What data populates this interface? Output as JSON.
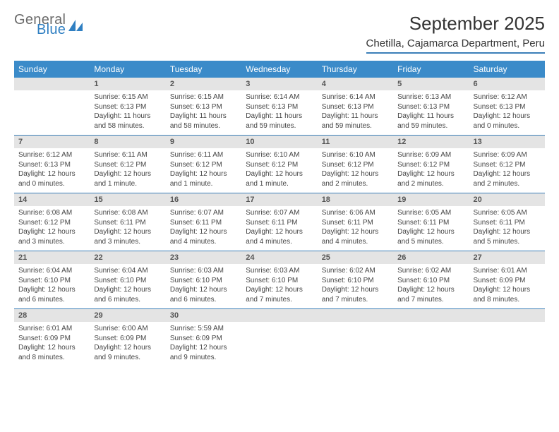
{
  "logo": {
    "general": "General",
    "blue": "Blue"
  },
  "title": "September 2025",
  "location": "Chetilla, Cajamarca Department, Peru",
  "colors": {
    "header_bg": "#3b8bc9",
    "header_text": "#ffffff",
    "rule": "#3b7fb8",
    "daynum_bg": "#e4e4e4",
    "logo_general": "#6b6b6b",
    "logo_blue": "#2f7fc2",
    "text": "#444444"
  },
  "typography": {
    "title_fontsize": 26,
    "location_fontsize": 15,
    "dayheader_fontsize": 12,
    "daynum_fontsize": 11,
    "body_fontsize": 10
  },
  "day_headers": [
    "Sunday",
    "Monday",
    "Tuesday",
    "Wednesday",
    "Thursday",
    "Friday",
    "Saturday"
  ],
  "weeks": [
    [
      {
        "n": "",
        "sr": "",
        "ss": "",
        "dl": ""
      },
      {
        "n": "1",
        "sr": "Sunrise: 6:15 AM",
        "ss": "Sunset: 6:13 PM",
        "dl": "Daylight: 11 hours and 58 minutes."
      },
      {
        "n": "2",
        "sr": "Sunrise: 6:15 AM",
        "ss": "Sunset: 6:13 PM",
        "dl": "Daylight: 11 hours and 58 minutes."
      },
      {
        "n": "3",
        "sr": "Sunrise: 6:14 AM",
        "ss": "Sunset: 6:13 PM",
        "dl": "Daylight: 11 hours and 59 minutes."
      },
      {
        "n": "4",
        "sr": "Sunrise: 6:14 AM",
        "ss": "Sunset: 6:13 PM",
        "dl": "Daylight: 11 hours and 59 minutes."
      },
      {
        "n": "5",
        "sr": "Sunrise: 6:13 AM",
        "ss": "Sunset: 6:13 PM",
        "dl": "Daylight: 11 hours and 59 minutes."
      },
      {
        "n": "6",
        "sr": "Sunrise: 6:12 AM",
        "ss": "Sunset: 6:13 PM",
        "dl": "Daylight: 12 hours and 0 minutes."
      }
    ],
    [
      {
        "n": "7",
        "sr": "Sunrise: 6:12 AM",
        "ss": "Sunset: 6:13 PM",
        "dl": "Daylight: 12 hours and 0 minutes."
      },
      {
        "n": "8",
        "sr": "Sunrise: 6:11 AM",
        "ss": "Sunset: 6:12 PM",
        "dl": "Daylight: 12 hours and 1 minute."
      },
      {
        "n": "9",
        "sr": "Sunrise: 6:11 AM",
        "ss": "Sunset: 6:12 PM",
        "dl": "Daylight: 12 hours and 1 minute."
      },
      {
        "n": "10",
        "sr": "Sunrise: 6:10 AM",
        "ss": "Sunset: 6:12 PM",
        "dl": "Daylight: 12 hours and 1 minute."
      },
      {
        "n": "11",
        "sr": "Sunrise: 6:10 AM",
        "ss": "Sunset: 6:12 PM",
        "dl": "Daylight: 12 hours and 2 minutes."
      },
      {
        "n": "12",
        "sr": "Sunrise: 6:09 AM",
        "ss": "Sunset: 6:12 PM",
        "dl": "Daylight: 12 hours and 2 minutes."
      },
      {
        "n": "13",
        "sr": "Sunrise: 6:09 AM",
        "ss": "Sunset: 6:12 PM",
        "dl": "Daylight: 12 hours and 2 minutes."
      }
    ],
    [
      {
        "n": "14",
        "sr": "Sunrise: 6:08 AM",
        "ss": "Sunset: 6:12 PM",
        "dl": "Daylight: 12 hours and 3 minutes."
      },
      {
        "n": "15",
        "sr": "Sunrise: 6:08 AM",
        "ss": "Sunset: 6:11 PM",
        "dl": "Daylight: 12 hours and 3 minutes."
      },
      {
        "n": "16",
        "sr": "Sunrise: 6:07 AM",
        "ss": "Sunset: 6:11 PM",
        "dl": "Daylight: 12 hours and 4 minutes."
      },
      {
        "n": "17",
        "sr": "Sunrise: 6:07 AM",
        "ss": "Sunset: 6:11 PM",
        "dl": "Daylight: 12 hours and 4 minutes."
      },
      {
        "n": "18",
        "sr": "Sunrise: 6:06 AM",
        "ss": "Sunset: 6:11 PM",
        "dl": "Daylight: 12 hours and 4 minutes."
      },
      {
        "n": "19",
        "sr": "Sunrise: 6:05 AM",
        "ss": "Sunset: 6:11 PM",
        "dl": "Daylight: 12 hours and 5 minutes."
      },
      {
        "n": "20",
        "sr": "Sunrise: 6:05 AM",
        "ss": "Sunset: 6:11 PM",
        "dl": "Daylight: 12 hours and 5 minutes."
      }
    ],
    [
      {
        "n": "21",
        "sr": "Sunrise: 6:04 AM",
        "ss": "Sunset: 6:10 PM",
        "dl": "Daylight: 12 hours and 6 minutes."
      },
      {
        "n": "22",
        "sr": "Sunrise: 6:04 AM",
        "ss": "Sunset: 6:10 PM",
        "dl": "Daylight: 12 hours and 6 minutes."
      },
      {
        "n": "23",
        "sr": "Sunrise: 6:03 AM",
        "ss": "Sunset: 6:10 PM",
        "dl": "Daylight: 12 hours and 6 minutes."
      },
      {
        "n": "24",
        "sr": "Sunrise: 6:03 AM",
        "ss": "Sunset: 6:10 PM",
        "dl": "Daylight: 12 hours and 7 minutes."
      },
      {
        "n": "25",
        "sr": "Sunrise: 6:02 AM",
        "ss": "Sunset: 6:10 PM",
        "dl": "Daylight: 12 hours and 7 minutes."
      },
      {
        "n": "26",
        "sr": "Sunrise: 6:02 AM",
        "ss": "Sunset: 6:10 PM",
        "dl": "Daylight: 12 hours and 7 minutes."
      },
      {
        "n": "27",
        "sr": "Sunrise: 6:01 AM",
        "ss": "Sunset: 6:09 PM",
        "dl": "Daylight: 12 hours and 8 minutes."
      }
    ],
    [
      {
        "n": "28",
        "sr": "Sunrise: 6:01 AM",
        "ss": "Sunset: 6:09 PM",
        "dl": "Daylight: 12 hours and 8 minutes."
      },
      {
        "n": "29",
        "sr": "Sunrise: 6:00 AM",
        "ss": "Sunset: 6:09 PM",
        "dl": "Daylight: 12 hours and 9 minutes."
      },
      {
        "n": "30",
        "sr": "Sunrise: 5:59 AM",
        "ss": "Sunset: 6:09 PM",
        "dl": "Daylight: 12 hours and 9 minutes."
      },
      {
        "n": "",
        "sr": "",
        "ss": "",
        "dl": ""
      },
      {
        "n": "",
        "sr": "",
        "ss": "",
        "dl": ""
      },
      {
        "n": "",
        "sr": "",
        "ss": "",
        "dl": ""
      },
      {
        "n": "",
        "sr": "",
        "ss": "",
        "dl": ""
      }
    ]
  ]
}
